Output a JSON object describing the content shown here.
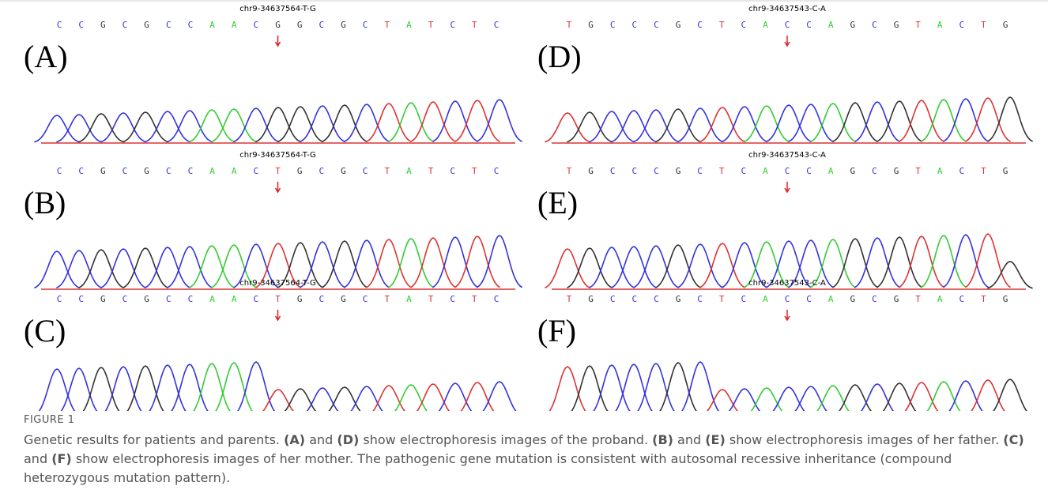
{
  "figure": {
    "panels": [
      {
        "label": "(A)",
        "variant": "chr9-34637564-T-G",
        "bases": [
          "C",
          "C",
          "G",
          "C",
          "G",
          "C",
          "C",
          "A",
          "A",
          "C",
          "G",
          "G",
          "C",
          "G",
          "C",
          "T",
          "A",
          "T",
          "C",
          "T",
          "C"
        ]
      },
      {
        "label": "(B)",
        "variant": "chr9-34637564-T-G",
        "bases": [
          "C",
          "C",
          "G",
          "C",
          "G",
          "C",
          "C",
          "A",
          "A",
          "C",
          "T",
          "G",
          "C",
          "G",
          "C",
          "T",
          "A",
          "T",
          "C",
          "T",
          "C"
        ]
      },
      {
        "label": "(C)",
        "variant": "chr9-34637564-T-G",
        "bases": [
          "C",
          "C",
          "G",
          "C",
          "G",
          "C",
          "C",
          "A",
          "A",
          "C",
          "T",
          "G",
          "C",
          "G",
          "C",
          "T",
          "A",
          "T",
          "C",
          "T",
          "C"
        ]
      },
      {
        "label": "(D)",
        "variant": "chr9-34637543-C-A",
        "bases": [
          "T",
          "G",
          "C",
          "C",
          "C",
          "G",
          "C",
          "T",
          "C",
          "A",
          "C",
          "C",
          "A",
          "G",
          "C",
          "G",
          "T",
          "A",
          "C",
          "T",
          "G"
        ]
      },
      {
        "label": "(E)",
        "variant": "chr9-34637543-C-A",
        "bases": [
          "T",
          "G",
          "C",
          "C",
          "C",
          "G",
          "C",
          "T",
          "C",
          "A",
          "C",
          "C",
          "A",
          "G",
          "C",
          "G",
          "T",
          "A",
          "C",
          "T",
          "G"
        ]
      },
      {
        "label": "(F)",
        "variant": "chr9-34637543-C-A",
        "bases": [
          "T",
          "G",
          "C",
          "C",
          "C",
          "G",
          "C",
          "T",
          "C",
          "A",
          "C",
          "C",
          "A",
          "G",
          "C",
          "G",
          "T",
          "A",
          "C",
          "T",
          "G"
        ]
      }
    ],
    "base_colors": {
      "A": "#33cc33",
      "C": "#3333dd",
      "G": "#333333",
      "T": "#dd3333"
    },
    "caption": {
      "label": "FIGURE 1",
      "parts": [
        "Genetic results for patients and parents. ",
        "(A)",
        " and ",
        "(D)",
        " show electrophoresis images of the proband. ",
        "(B)",
        " and ",
        "(E)",
        " show electrophoresis images of her father. ",
        "(C)",
        " and ",
        "(F)",
        " show electrophoresis images of her mother. The pathogenic gene mutation is consistent with autosomal recessive inheritance (compound heterozygous mutation pattern)."
      ]
    }
  }
}
